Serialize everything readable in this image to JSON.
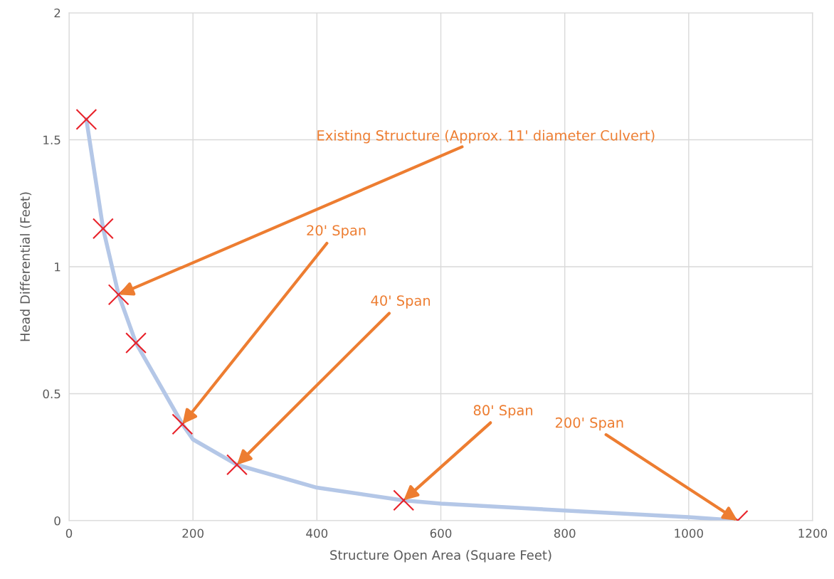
{
  "chart_data": {
    "type": "scatter",
    "xlabel": "Structure Open Area (Square Feet)",
    "ylabel": "Head Differential (Feet)",
    "xlim": [
      0,
      1200
    ],
    "xticks": [
      0,
      200,
      400,
      600,
      800,
      1000,
      1200
    ],
    "ylim": [
      0,
      2
    ],
    "yticks": [
      0,
      0.5,
      1,
      1.5,
      2
    ],
    "grid": true,
    "legend": false,
    "series": [
      {
        "type": "line",
        "color": "#b4c7e7",
        "line_style": "solid",
        "x": [
          28,
          55,
          80,
          108,
          183,
          200,
          271,
          400,
          540,
          600,
          800,
          1000,
          1079
        ],
        "values": [
          1.58,
          1.15,
          0.89,
          0.7,
          0.38,
          0.32,
          0.22,
          0.13,
          0.08,
          0.067,
          0.04,
          0.014,
          0
        ]
      },
      {
        "color": "#e8222a",
        "marker": "cross",
        "x": [
          28,
          55,
          80,
          108,
          183,
          271,
          540,
          1079
        ],
        "values": [
          1.58,
          1.15,
          0.89,
          0.7,
          0.38,
          0.22,
          0.08,
          0
        ]
      }
    ],
    "annotations": [
      {
        "text": "Existing Structure (Approx. 11' diameter Culvert)",
        "x": 80,
        "y": 0.89
      },
      {
        "text": "20' Span",
        "x": 183,
        "y": 0.38
      },
      {
        "text": "40' Span",
        "x": 271,
        "y": 0.22
      },
      {
        "text": "80' Span",
        "x": 540,
        "y": 0.08
      },
      {
        "text": "200' Span",
        "x": 1079,
        "y": 0
      }
    ]
  }
}
